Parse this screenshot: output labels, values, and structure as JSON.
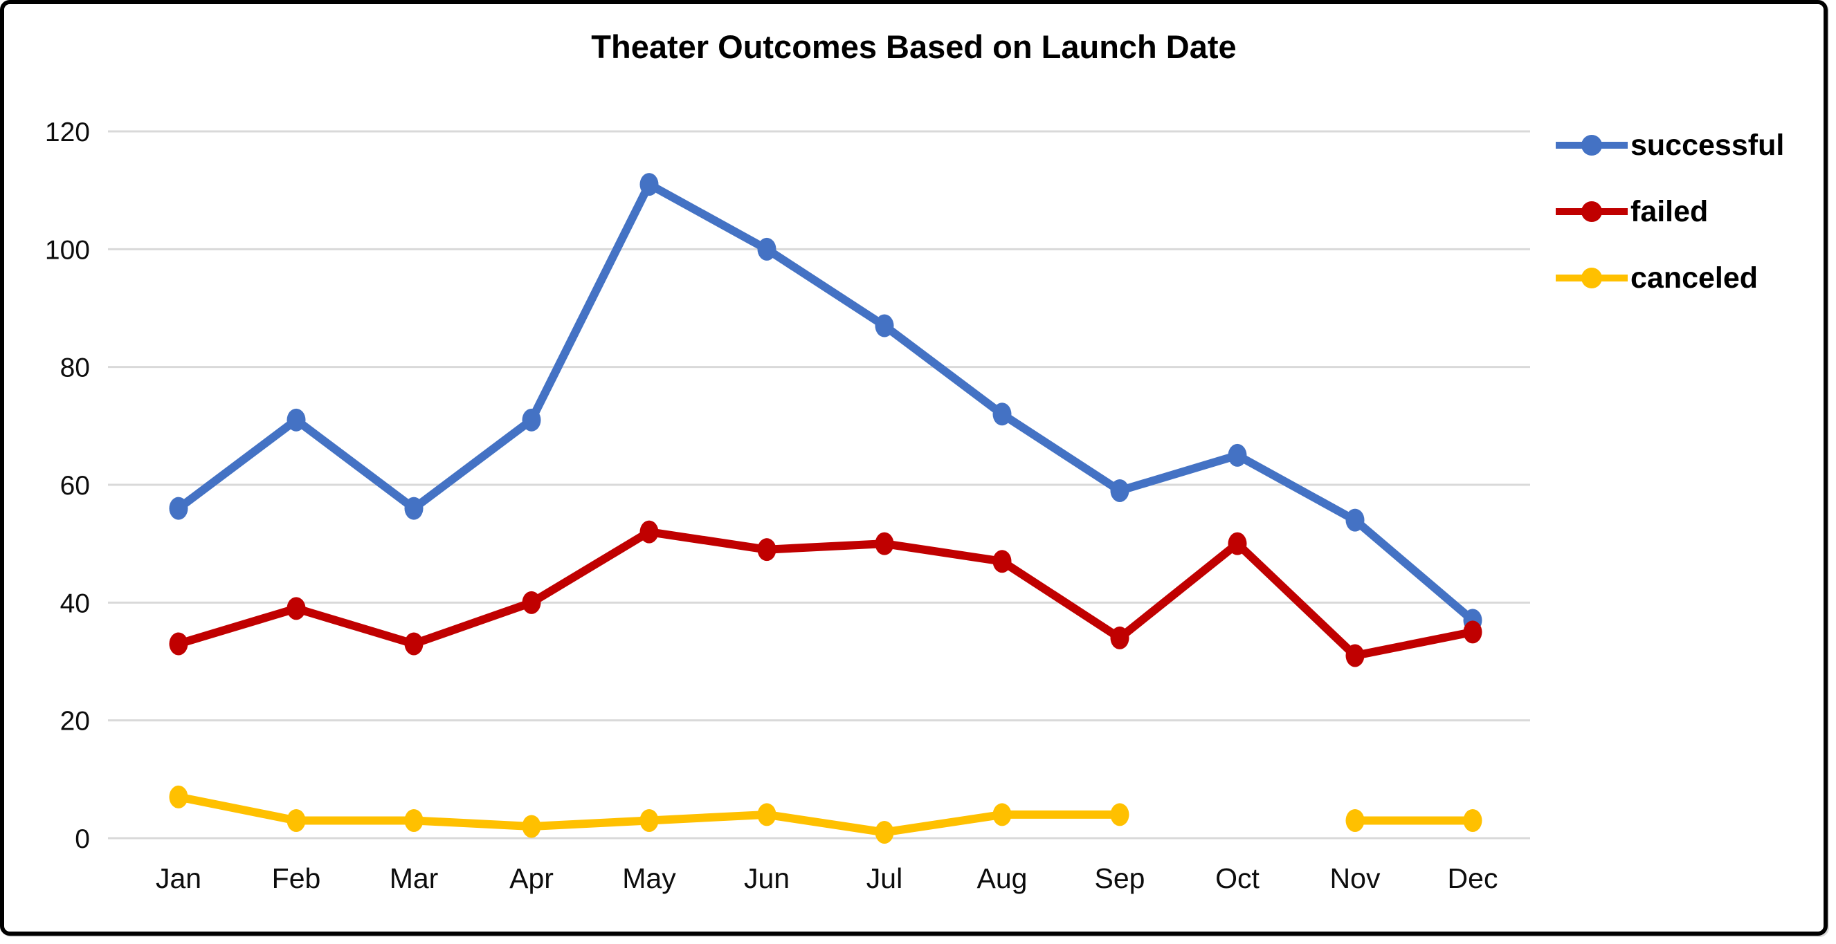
{
  "chart_data": {
    "type": "line",
    "title": "Theater Outcomes Based on Launch Date",
    "categories": [
      "Jan",
      "Feb",
      "Mar",
      "Apr",
      "May",
      "Jun",
      "Jul",
      "Aug",
      "Sep",
      "Oct",
      "Nov",
      "Dec"
    ],
    "series": [
      {
        "name": "successful",
        "color": "#4472C4",
        "values": [
          56,
          71,
          56,
          71,
          111,
          100,
          87,
          72,
          59,
          65,
          54,
          37
        ]
      },
      {
        "name": "failed",
        "color": "#C00000",
        "values": [
          33,
          39,
          33,
          40,
          52,
          49,
          50,
          47,
          34,
          50,
          31,
          35
        ]
      },
      {
        "name": "canceled",
        "color": "#FFC000",
        "values": [
          7,
          3,
          3,
          2,
          3,
          4,
          1,
          4,
          4,
          null,
          3,
          3
        ]
      }
    ],
    "y_ticks": [
      0,
      20,
      40,
      60,
      80,
      100,
      120
    ],
    "ylim": [
      0,
      120
    ],
    "grid": "horizontal-only",
    "legend_position": "right"
  },
  "style": {
    "gridline_color": "#D9D9D9",
    "axis_text_color": "#0d0d0d",
    "background_color": "#FFFFFF",
    "border_color": "#000000"
  }
}
